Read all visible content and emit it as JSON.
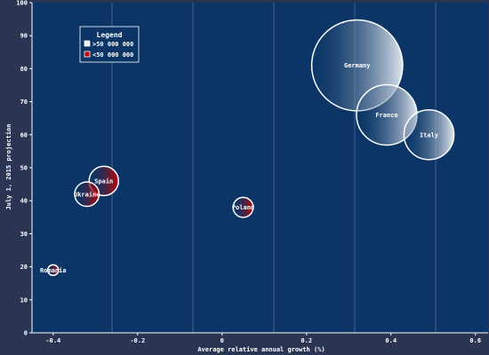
{
  "chart_data": {
    "type": "scatter",
    "subtype": "bubble",
    "title": "",
    "xlabel": "Average relative annual growth (%)",
    "ylabel": "July 1, 2015 projection",
    "xlim": [
      -0.45,
      0.63
    ],
    "ylim": [
      0,
      100
    ],
    "x_ticks": [
      -0.4,
      -0.2,
      0,
      0.2,
      0.4,
      0.6
    ],
    "x_tick_labels": [
      "-0.4",
      "-0.2",
      "0",
      "0.2",
      "0.4",
      "0.6"
    ],
    "y_ticks": [
      0,
      10,
      20,
      30,
      40,
      50,
      60,
      70,
      80,
      90,
      100
    ],
    "y_tick_labels": [
      "0",
      "10",
      "20",
      "30",
      "40",
      "50",
      "60",
      "70",
      "80",
      "90",
      "100"
    ],
    "grid": "vertical",
    "legend": {
      "title": "Legend",
      "placement": "top-left",
      "entries": [
        {
          "label": ">50 000 000",
          "color": "#f0f4fa"
        },
        {
          "label": "<50 000 000",
          "color": "#c00000"
        }
      ]
    },
    "points": [
      {
        "label": "Germany",
        "x": 0.32,
        "y": 81,
        "group": ">50 000 000"
      },
      {
        "label": "France",
        "x": 0.39,
        "y": 66,
        "group": ">50 000 000"
      },
      {
        "label": "Italy",
        "x": 0.49,
        "y": 60,
        "group": ">50 000 000"
      },
      {
        "label": "Spain",
        "x": -0.28,
        "y": 46,
        "group": "<50 000 000"
      },
      {
        "label": "Ukraine",
        "x": -0.32,
        "y": 42,
        "group": "<50 000 000"
      },
      {
        "label": "Poland",
        "x": 0.05,
        "y": 38,
        "group": "<50 000 000"
      },
      {
        "label": "Romania",
        "x": -0.4,
        "y": 19,
        "group": "<50 000 000"
      }
    ],
    "colors": {
      "background": "#2a3554",
      "plot_area": "#0a3566",
      "grid_line": "#4a6282",
      "bubble_outline": "#ffffff",
      "large_group_fill": "#f0f4fa",
      "small_group_fill": "#c00000"
    }
  }
}
